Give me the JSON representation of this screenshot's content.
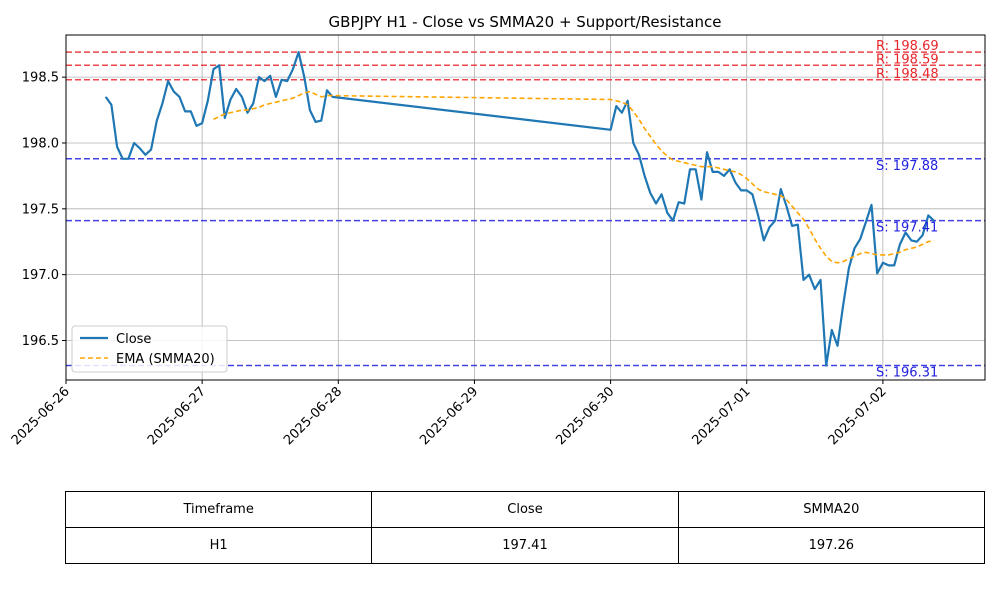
{
  "chart_data": {
    "type": "line",
    "title": "GBPJPY H1 - Close vs SMMA20 + Support/Resistance",
    "xlabel": "",
    "ylabel": "",
    "x_range": [
      "2025-06-26 00:00",
      "2025-07-02 18:00"
    ],
    "ylim": [
      196.2,
      198.82
    ],
    "x_ticks": [
      "2025-06-26",
      "2025-06-27",
      "2025-06-28",
      "2025-06-29",
      "2025-06-30",
      "2025-07-01",
      "2025-07-02"
    ],
    "y_ticks": [
      "196.5",
      "197.0",
      "197.5",
      "198.0",
      "198.5"
    ],
    "grid": true,
    "legend_position": "lower-left",
    "series": [
      {
        "name": "Close",
        "style": "solid",
        "color": "#1f77b4",
        "x": [
          "2025-06-26 07:00",
          "2025-06-26 08:00",
          "2025-06-26 09:00",
          "2025-06-26 10:00",
          "2025-06-26 11:00",
          "2025-06-26 12:00",
          "2025-06-26 13:00",
          "2025-06-26 14:00",
          "2025-06-26 15:00",
          "2025-06-26 16:00",
          "2025-06-26 17:00",
          "2025-06-26 18:00",
          "2025-06-26 19:00",
          "2025-06-26 20:00",
          "2025-06-26 21:00",
          "2025-06-26 22:00",
          "2025-06-26 23:00",
          "2025-06-27 00:00",
          "2025-06-27 01:00",
          "2025-06-27 02:00",
          "2025-06-27 03:00",
          "2025-06-27 04:00",
          "2025-06-27 05:00",
          "2025-06-27 06:00",
          "2025-06-27 07:00",
          "2025-06-27 08:00",
          "2025-06-27 09:00",
          "2025-06-27 10:00",
          "2025-06-27 11:00",
          "2025-06-27 12:00",
          "2025-06-27 13:00",
          "2025-06-27 14:00",
          "2025-06-27 15:00",
          "2025-06-27 16:00",
          "2025-06-27 17:00",
          "2025-06-27 18:00",
          "2025-06-27 19:00",
          "2025-06-27 20:00",
          "2025-06-27 21:00",
          "2025-06-27 22:00",
          "2025-06-27 23:00",
          "2025-06-30 00:00",
          "2025-06-30 01:00",
          "2025-06-30 02:00",
          "2025-06-30 03:00",
          "2025-06-30 04:00",
          "2025-06-30 05:00",
          "2025-06-30 06:00",
          "2025-06-30 07:00",
          "2025-06-30 08:00",
          "2025-06-30 09:00",
          "2025-06-30 10:00",
          "2025-06-30 11:00",
          "2025-06-30 12:00",
          "2025-06-30 13:00",
          "2025-06-30 14:00",
          "2025-06-30 15:00",
          "2025-06-30 16:00",
          "2025-06-30 17:00",
          "2025-06-30 18:00",
          "2025-06-30 19:00",
          "2025-06-30 20:00",
          "2025-06-30 21:00",
          "2025-06-30 22:00",
          "2025-06-30 23:00",
          "2025-07-01 00:00",
          "2025-07-01 01:00",
          "2025-07-01 02:00",
          "2025-07-01 03:00",
          "2025-07-01 04:00",
          "2025-07-01 05:00",
          "2025-07-01 06:00",
          "2025-07-01 07:00",
          "2025-07-01 08:00",
          "2025-07-01 09:00",
          "2025-07-01 10:00",
          "2025-07-01 11:00",
          "2025-07-01 12:00",
          "2025-07-01 13:00",
          "2025-07-01 14:00",
          "2025-07-01 15:00",
          "2025-07-01 16:00",
          "2025-07-01 17:00",
          "2025-07-01 18:00",
          "2025-07-01 19:00",
          "2025-07-01 20:00",
          "2025-07-01 21:00",
          "2025-07-01 22:00",
          "2025-07-01 23:00",
          "2025-07-02 00:00",
          "2025-07-02 01:00",
          "2025-07-02 02:00",
          "2025-07-02 03:00",
          "2025-07-02 04:00",
          "2025-07-02 05:00",
          "2025-07-02 06:00",
          "2025-07-02 07:00",
          "2025-07-02 08:00",
          "2025-07-02 09:00"
        ],
        "values": [
          198.35,
          198.29,
          197.97,
          197.88,
          197.88,
          198.0,
          197.96,
          197.91,
          197.95,
          198.17,
          198.3,
          198.47,
          198.39,
          198.35,
          198.24,
          198.24,
          198.13,
          198.15,
          198.32,
          198.56,
          198.59,
          198.19,
          198.33,
          198.41,
          198.35,
          198.23,
          198.3,
          198.5,
          198.47,
          198.51,
          198.35,
          198.48,
          198.47,
          198.56,
          198.69,
          198.5,
          198.25,
          198.16,
          198.17,
          198.4,
          198.35,
          198.1,
          198.28,
          198.23,
          198.32,
          198.0,
          197.91,
          197.75,
          197.62,
          197.54,
          197.61,
          197.47,
          197.41,
          197.55,
          197.54,
          197.8,
          197.8,
          197.57,
          197.93,
          197.78,
          197.78,
          197.75,
          197.8,
          197.7,
          197.64,
          197.64,
          197.61,
          197.45,
          197.26,
          197.36,
          197.41,
          197.65,
          197.52,
          197.37,
          197.38,
          196.96,
          197.0,
          196.89,
          196.96,
          196.31,
          196.58,
          196.46,
          196.77,
          197.05,
          197.2,
          197.27,
          197.4,
          197.53,
          197.01,
          197.09,
          197.07,
          197.07,
          197.23,
          197.32,
          197.26,
          197.25,
          197.3,
          197.45,
          197.41
        ]
      },
      {
        "name": "EMA (SMMA20)",
        "style": "dashed",
        "color": "#ffa500",
        "x": [
          "2025-06-27 02:00",
          "2025-06-27 03:00",
          "2025-06-27 04:00",
          "2025-06-27 05:00",
          "2025-06-27 06:00",
          "2025-06-27 07:00",
          "2025-06-27 08:00",
          "2025-06-27 09:00",
          "2025-06-27 10:00",
          "2025-06-27 11:00",
          "2025-06-27 12:00",
          "2025-06-27 13:00",
          "2025-06-27 14:00",
          "2025-06-27 15:00",
          "2025-06-27 16:00",
          "2025-06-27 17:00",
          "2025-06-27 18:00",
          "2025-06-27 19:00",
          "2025-06-27 20:00",
          "2025-06-27 21:00",
          "2025-06-27 22:00",
          "2025-06-27 23:00",
          "2025-06-30 00:00",
          "2025-06-30 01:00",
          "2025-06-30 02:00",
          "2025-06-30 03:00",
          "2025-06-30 04:00",
          "2025-06-30 05:00",
          "2025-06-30 06:00",
          "2025-06-30 07:00",
          "2025-06-30 08:00",
          "2025-06-30 09:00",
          "2025-06-30 10:00",
          "2025-06-30 11:00",
          "2025-06-30 12:00",
          "2025-06-30 13:00",
          "2025-06-30 14:00",
          "2025-06-30 15:00",
          "2025-06-30 16:00",
          "2025-06-30 17:00",
          "2025-06-30 18:00",
          "2025-06-30 19:00",
          "2025-06-30 20:00",
          "2025-06-30 21:00",
          "2025-06-30 22:00",
          "2025-06-30 23:00",
          "2025-07-01 00:00",
          "2025-07-01 01:00",
          "2025-07-01 02:00",
          "2025-07-01 03:00",
          "2025-07-01 04:00",
          "2025-07-01 05:00",
          "2025-07-01 06:00",
          "2025-07-01 07:00",
          "2025-07-01 08:00",
          "2025-07-01 09:00",
          "2025-07-01 10:00",
          "2025-07-01 11:00",
          "2025-07-01 12:00",
          "2025-07-01 13:00",
          "2025-07-01 14:00",
          "2025-07-01 15:00",
          "2025-07-01 16:00",
          "2025-07-01 17:00",
          "2025-07-01 18:00",
          "2025-07-01 19:00",
          "2025-07-01 20:00",
          "2025-07-01 21:00",
          "2025-07-01 22:00",
          "2025-07-01 23:00",
          "2025-07-02 00:00",
          "2025-07-02 01:00",
          "2025-07-02 02:00",
          "2025-07-02 03:00",
          "2025-07-02 04:00",
          "2025-07-02 05:00",
          "2025-07-02 06:00",
          "2025-07-02 07:00",
          "2025-07-02 08:00",
          "2025-07-02 09:00"
        ],
        "values": [
          198.18,
          198.2,
          198.22,
          198.23,
          198.24,
          198.25,
          198.25,
          198.26,
          198.27,
          198.29,
          198.3,
          198.31,
          198.32,
          198.33,
          198.34,
          198.36,
          198.38,
          198.39,
          198.37,
          198.35,
          198.36,
          198.36,
          198.33,
          198.32,
          198.31,
          198.29,
          198.24,
          198.18,
          198.11,
          198.05,
          197.99,
          197.94,
          197.9,
          197.87,
          197.86,
          197.85,
          197.84,
          197.83,
          197.82,
          197.82,
          197.82,
          197.81,
          197.8,
          197.79,
          197.78,
          197.76,
          197.73,
          197.69,
          197.65,
          197.63,
          197.62,
          197.61,
          197.6,
          197.57,
          197.52,
          197.47,
          197.42,
          197.35,
          197.27,
          197.2,
          197.14,
          197.1,
          197.09,
          197.1,
          197.12,
          197.14,
          197.16,
          197.17,
          197.16,
          197.15,
          197.15,
          197.15,
          197.16,
          197.17,
          197.19,
          197.2,
          197.21,
          197.23,
          197.25,
          197.26
        ]
      }
    ],
    "levels": [
      {
        "kind": "resistance",
        "value": 198.69,
        "label": "R: 198.69",
        "color": "#e8262c"
      },
      {
        "kind": "resistance",
        "value": 198.59,
        "label": "R: 198.59",
        "color": "#e8262c"
      },
      {
        "kind": "resistance",
        "value": 198.48,
        "label": "R: 198.48",
        "color": "#e8262c"
      },
      {
        "kind": "support",
        "value": 197.88,
        "label": "S: 197.88",
        "color": "#2222e0"
      },
      {
        "kind": "support",
        "value": 197.41,
        "label": "S: 197.41",
        "color": "#2222e0"
      },
      {
        "kind": "support",
        "value": 196.31,
        "label": "S: 196.31",
        "color": "#2222e0"
      }
    ]
  },
  "summary_table": {
    "headers": [
      "Timeframe",
      "Close",
      "SMMA20"
    ],
    "row": [
      "H1",
      "197.41",
      "197.26"
    ]
  }
}
